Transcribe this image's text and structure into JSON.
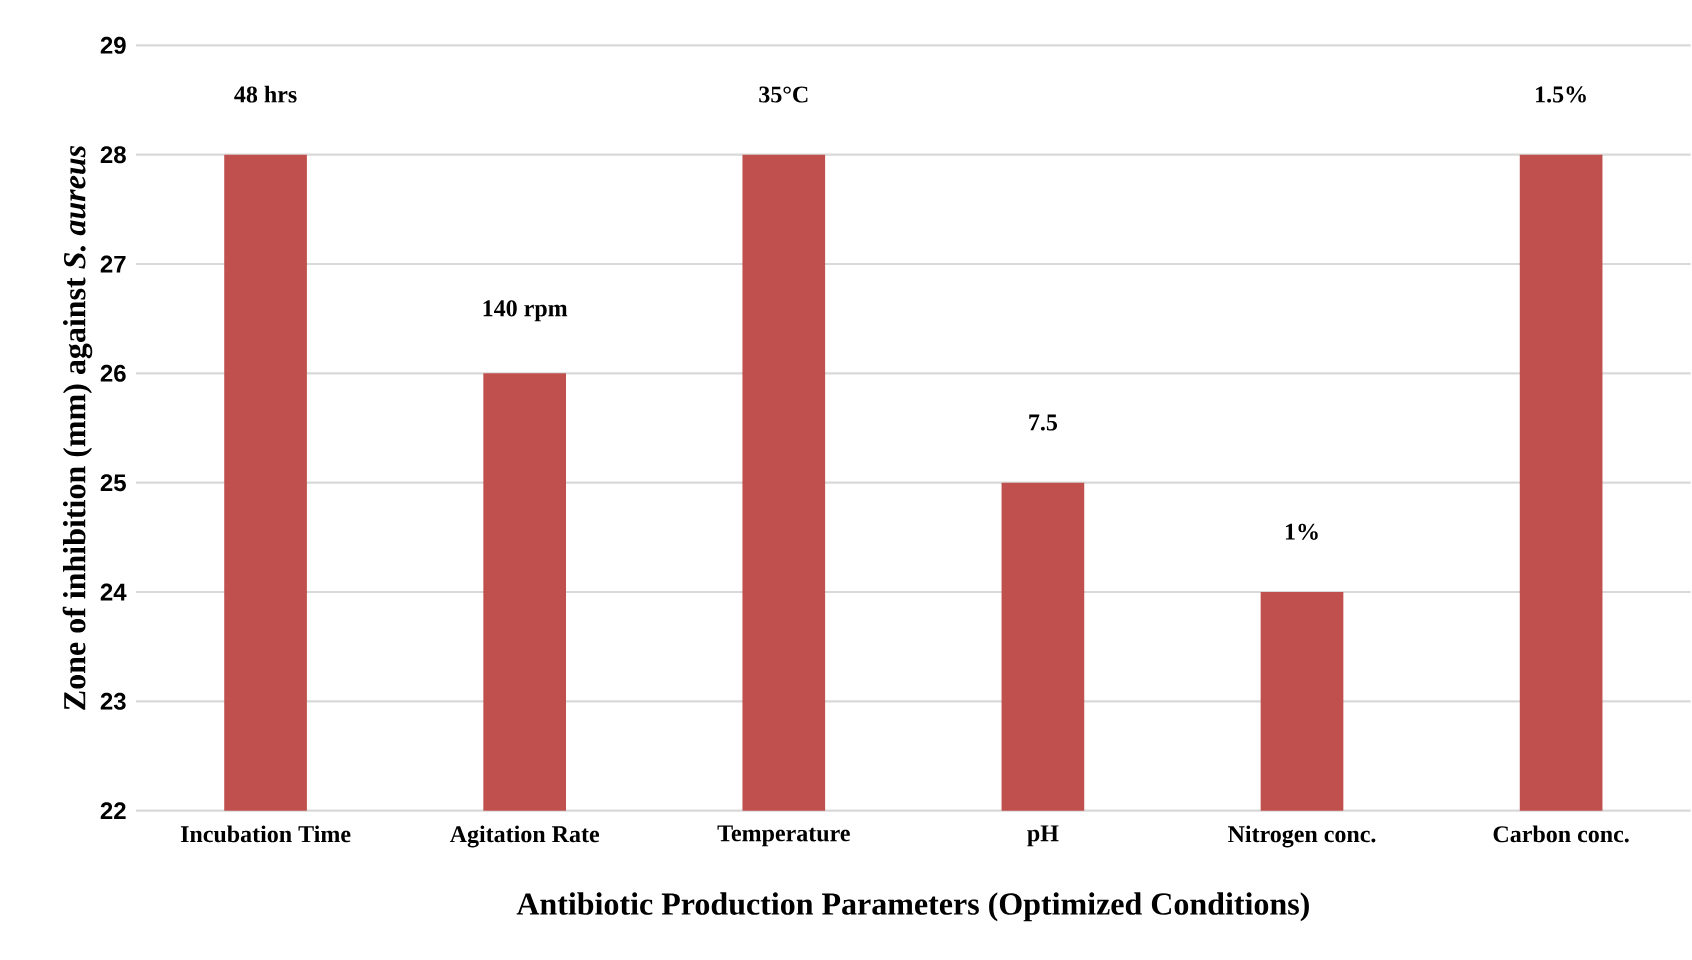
{
  "chart_data": {
    "type": "bar",
    "xlabel": "Antibiotic Production Parameters (Optimized Conditions)",
    "ylabel": "Zone of inhibition (mm) against *S. aureus*",
    "categories": [
      "Incubation Time",
      "Agitation Rate",
      "Temperature",
      "pH",
      "Nitrogen conc.",
      "Carbon conc."
    ],
    "values": [
      28,
      26,
      28,
      25,
      24,
      28
    ],
    "color": "#c0504d",
    "ylim": [
      22,
      29
    ],
    "yticks": [
      22,
      23,
      24,
      25,
      26,
      27,
      28,
      29
    ],
    "grid": "y",
    "annotations": [
      {
        "text": "48 hrs",
        "x": "Incubation Time",
        "y": 28
      },
      {
        "text": "140 rpm",
        "x": "Agitation Rate",
        "y": 26
      },
      {
        "text": "35°C",
        "x": "Temperature",
        "y": 28
      },
      {
        "text": "7.5",
        "x": "pH",
        "y": 25
      },
      {
        "text": "1%",
        "x": "Nitrogen conc.",
        "y": 24
      },
      {
        "text": "1.5%",
        "x": "Carbon conc.",
        "y": 28
      }
    ]
  }
}
